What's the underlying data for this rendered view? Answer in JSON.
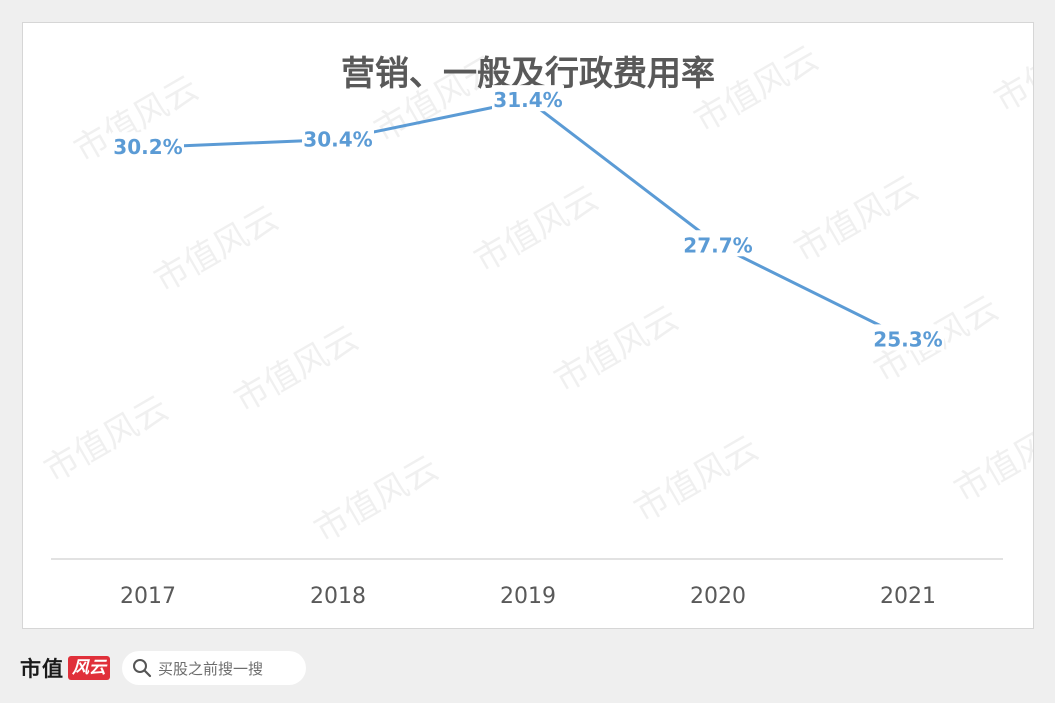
{
  "watermark": "市值风云",
  "chart_data": {
    "type": "line",
    "title": "营销、一般及行政费用率",
    "categories": [
      "2017",
      "2018",
      "2019",
      "2020",
      "2021"
    ],
    "series": [
      {
        "values": [
          30.2,
          30.4,
          31.4,
          27.7,
          25.3
        ],
        "labels": [
          "30.2%",
          "30.4%",
          "31.4%",
          "27.7%",
          "25.3%"
        ]
      }
    ],
    "xlabel": "",
    "ylabel": "",
    "ylim": [
      19.7,
      32.5
    ],
    "grid": false,
    "line_color": "#5b9bd5",
    "label_color": "#5b9bd5",
    "title_color": "#595959"
  },
  "footer": {
    "brand_text": "市值",
    "brand_seal": "风云",
    "search_placeholder": "买股之前搜一搜"
  }
}
